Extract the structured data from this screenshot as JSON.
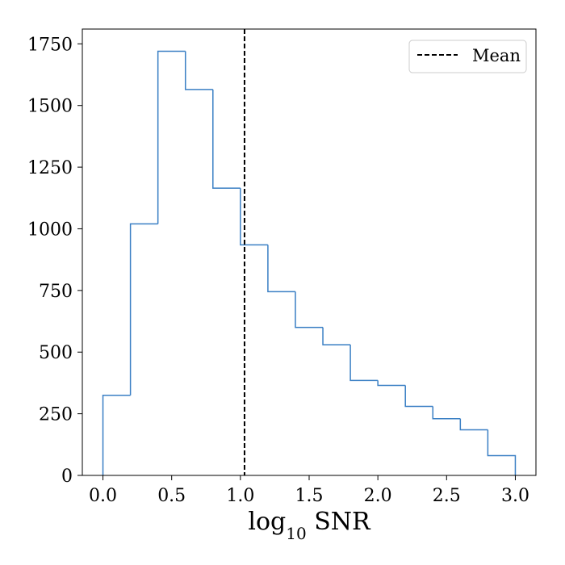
{
  "chart_data": {
    "type": "histogram",
    "title": "",
    "xlabel": {
      "base": "log",
      "subscript": "10",
      "rest": " SNR"
    },
    "ylabel": "",
    "xlim": [
      -0.15,
      3.15
    ],
    "ylim": [
      0,
      1810
    ],
    "grid": false,
    "legend": {
      "placement": "top-right",
      "entries": [
        {
          "label": "Mean",
          "style": "dashed",
          "color": "#000000"
        }
      ]
    },
    "bin_edges": [
      0.0,
      0.2,
      0.4,
      0.6,
      0.8,
      1.0,
      1.2,
      1.4,
      1.6,
      1.8,
      2.0,
      2.2,
      2.4,
      2.6,
      2.8,
      3.0
    ],
    "counts": [
      325,
      1020,
      1720,
      1565,
      1165,
      935,
      745,
      600,
      530,
      385,
      365,
      280,
      230,
      185,
      80
    ],
    "mean": 1.03,
    "series_color": "#3a7fc4",
    "x_ticks": [
      {
        "value": 0.0,
        "label": "0.0"
      },
      {
        "value": 0.5,
        "label": "0.5"
      },
      {
        "value": 1.0,
        "label": "1.0"
      },
      {
        "value": 1.5,
        "label": "1.5"
      },
      {
        "value": 2.0,
        "label": "2.0"
      },
      {
        "value": 2.5,
        "label": "2.5"
      },
      {
        "value": 3.0,
        "label": "3.0"
      }
    ],
    "y_ticks": [
      {
        "value": 0,
        "label": "0"
      },
      {
        "value": 250,
        "label": "250"
      },
      {
        "value": 500,
        "label": "500"
      },
      {
        "value": 750,
        "label": "750"
      },
      {
        "value": 1000,
        "label": "1000"
      },
      {
        "value": 1250,
        "label": "1250"
      },
      {
        "value": 1500,
        "label": "1500"
      },
      {
        "value": 1750,
        "label": "1750"
      }
    ]
  }
}
